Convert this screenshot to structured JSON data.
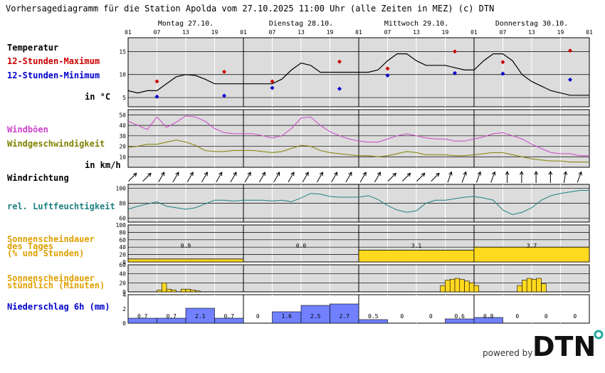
{
  "title": "Vorhersagediagramm für die Station Apolda vom 27.10.2025 11:00 Uhr (alle Zeiten in MEZ)   (c) DTN",
  "days": [
    "Montag 27.10.",
    "Dienstag 28.10.",
    "Mittwoch 29.10.",
    "Donnerstag 30.10."
  ],
  "hour_ticks": [
    "01",
    "07",
    "13",
    "19",
    "01",
    "07",
    "13",
    "19",
    "01",
    "07",
    "13",
    "19",
    "01",
    "07",
    "13",
    "19",
    "01"
  ],
  "labels": {
    "temperature": "Temperatur",
    "tmax": "12-Stunden-Maximum",
    "tmin": "12-Stunden-Minimum",
    "temp_unit": "in °C",
    "gusts": "Windböen",
    "windspeed": "Windgeschwindigkeit",
    "wind_unit": "in km/h",
    "winddir": "Windrichtung",
    "humidity": "rel. Luftfeuchtigkeit",
    "sun_day_1": "Sonnenscheindauer",
    "sun_day_2": "des Tages",
    "sun_day_3": "(% und Stunden)",
    "sun_hour_1": "Sonnenscheindauer",
    "sun_hour_2": "stündlich (Minuten)",
    "precip": "Niederschlag 6h (mm)"
  },
  "footer": {
    "powered": "powered by",
    "logo": "DTN"
  },
  "colors": {
    "panel_bg": "#dcdcdc",
    "tmax": "#cc0000",
    "tmin": "#0000cc",
    "gust": "#cc44cc",
    "wind": "#808000",
    "humidity": "#208080",
    "sun_label": "#e0a000",
    "sun_fill": "#ffd820",
    "precip_label": "#0000cc",
    "precip_fill": "#7080ff"
  },
  "chart_data": [
    {
      "id": "temperature",
      "type": "line",
      "yticks": [
        5,
        10,
        15
      ],
      "ylim": [
        3,
        18
      ],
      "hours_from_start": [
        0,
        2,
        4,
        6,
        8,
        10,
        12,
        14,
        16,
        18,
        20,
        22,
        24,
        26,
        28,
        30,
        32,
        34,
        36,
        38,
        40,
        42,
        44,
        46,
        48,
        50,
        52,
        54,
        56,
        58,
        60,
        62,
        64,
        66,
        68,
        70,
        72,
        74,
        76,
        78,
        80,
        82,
        84,
        86,
        88,
        90,
        92,
        94,
        96
      ],
      "temperature": [
        6.5,
        6,
        6.5,
        6.5,
        8,
        9.5,
        10,
        9.8,
        9,
        8,
        8,
        8,
        8,
        8,
        8,
        8,
        9,
        11,
        12.5,
        12,
        10.5,
        10.5,
        10.5,
        10.5,
        10.5,
        10.5,
        11,
        13,
        14.5,
        14.5,
        13,
        12,
        12,
        12,
        11.5,
        11,
        11,
        13,
        14.5,
        14.5,
        13,
        10,
        8.5,
        7.5,
        6.5,
        6,
        5.5,
        5.5,
        5.5
      ],
      "max_hours": [
        6,
        20,
        30,
        44,
        54,
        68,
        78,
        92
      ],
      "max_values": [
        8.5,
        10.6,
        8.5,
        12.8,
        11.3,
        15,
        12.7,
        15.2
      ],
      "min_hours": [
        6,
        20,
        30,
        44,
        54,
        68,
        78,
        92
      ],
      "min_values": [
        5.2,
        5.4,
        7.1,
        6.9,
        9.8,
        10.3,
        10.2,
        8.9
      ]
    },
    {
      "id": "wind",
      "type": "line",
      "yticks": [
        10,
        20,
        30,
        40,
        50
      ],
      "ylim": [
        0,
        55
      ],
      "hours_from_start": [
        0,
        2,
        4,
        6,
        8,
        10,
        12,
        14,
        16,
        18,
        20,
        22,
        24,
        26,
        28,
        30,
        32,
        34,
        36,
        38,
        40,
        42,
        44,
        46,
        48,
        50,
        52,
        54,
        56,
        58,
        60,
        62,
        64,
        66,
        68,
        70,
        72,
        74,
        76,
        78,
        80,
        82,
        84,
        86,
        88,
        90,
        92,
        94,
        96
      ],
      "gusts": [
        44,
        40,
        36,
        48,
        38,
        43,
        49,
        48,
        44,
        37,
        33,
        32,
        32,
        32,
        30,
        28,
        30,
        37,
        47,
        48,
        40,
        34,
        30,
        27,
        25,
        24,
        24,
        27,
        30,
        32,
        30,
        28,
        27,
        27,
        25,
        25,
        27,
        29,
        32,
        33,
        30,
        27,
        22,
        18,
        14,
        13,
        13,
        11,
        11
      ],
      "windspeed": [
        19,
        20,
        22,
        22,
        24,
        26,
        24,
        21,
        16,
        15,
        15,
        16,
        16,
        16,
        15,
        14,
        15,
        18,
        21,
        20,
        16,
        14,
        13,
        12,
        11,
        11,
        10,
        11,
        13,
        15,
        14,
        12,
        12,
        12,
        11,
        11,
        12,
        13,
        14,
        14,
        12,
        10,
        8,
        7,
        6,
        6,
        5,
        5,
        5
      ]
    },
    {
      "id": "wind_direction",
      "type": "table",
      "count": 32,
      "direction_deg": [
        225,
        225,
        210,
        210,
        210,
        210,
        210,
        210,
        210,
        210,
        210,
        210,
        210,
        210,
        210,
        210,
        210,
        210,
        225,
        225,
        225,
        225,
        200,
        200,
        200,
        200,
        180,
        180,
        180,
        180,
        190,
        200
      ]
    },
    {
      "id": "humidity",
      "type": "line",
      "yticks": [
        60,
        80,
        100
      ],
      "ylim": [
        55,
        105
      ],
      "hours_from_start": [
        0,
        2,
        4,
        6,
        8,
        10,
        12,
        14,
        16,
        18,
        20,
        22,
        24,
        26,
        28,
        30,
        32,
        34,
        36,
        38,
        40,
        42,
        44,
        46,
        48,
        50,
        52,
        54,
        56,
        58,
        60,
        62,
        64,
        66,
        68,
        70,
        72,
        74,
        76,
        78,
        80,
        82,
        84,
        86,
        88,
        90,
        92,
        94,
        96
      ],
      "humidity": [
        72,
        76,
        79,
        82,
        76,
        74,
        72,
        74,
        79,
        84,
        84,
        83,
        84,
        84,
        84,
        83,
        84,
        82,
        87,
        93,
        92,
        89,
        88,
        88,
        88,
        90,
        85,
        77,
        71,
        68,
        70,
        80,
        84,
        84,
        86,
        88,
        89,
        87,
        84,
        71,
        65,
        68,
        74,
        84,
        90,
        93,
        95,
        97,
        97
      ]
    },
    {
      "id": "sunshine_daily",
      "type": "bar",
      "yticks": [
        0,
        20,
        40,
        60,
        80,
        100
      ],
      "ylim": [
        0,
        100
      ],
      "categories": [
        "Montag 27.10.",
        "Dienstag 28.10.",
        "Mittwoch 29.10.",
        "Donnerstag 30.10."
      ],
      "percent": [
        8,
        0,
        32,
        40
      ],
      "hours": [
        "0.9",
        "0.0",
        "3.1",
        "3.7"
      ]
    },
    {
      "id": "sunshine_hourly",
      "type": "bar",
      "yticks": [
        0,
        20,
        40,
        60
      ],
      "ylim": [
        0,
        60
      ],
      "hour_index": [
        7,
        8,
        9,
        10,
        11,
        12,
        13,
        14,
        15,
        16,
        66,
        67,
        68,
        69,
        70,
        71,
        72,
        73,
        74,
        75,
        76,
        77,
        78,
        79,
        80,
        81,
        82,
        83,
        84,
        85,
        86,
        87
      ],
      "minutes": [
        4,
        20,
        6,
        4,
        0,
        6,
        6,
        4,
        2,
        0,
        14,
        26,
        28,
        30,
        28,
        24,
        20,
        14,
        0,
        0,
        0,
        0,
        0,
        0,
        0,
        0,
        14,
        26,
        30,
        28,
        30,
        18
      ]
    },
    {
      "id": "precipitation",
      "type": "bar",
      "yticks": [
        0,
        2,
        4
      ],
      "ylim": [
        0,
        4
      ],
      "values": [
        "0.7",
        "0.7",
        "2.1",
        "0.7",
        "0",
        "1.6",
        "2.5",
        "2.7",
        "0.5",
        "0",
        "0",
        "0.6",
        "0.8",
        "0",
        "0",
        "0"
      ],
      "amounts": [
        0.7,
        0.7,
        2.1,
        0.7,
        0,
        1.6,
        2.5,
        2.7,
        0.5,
        0,
        0,
        0.6,
        0.8,
        0,
        0,
        0
      ]
    }
  ]
}
